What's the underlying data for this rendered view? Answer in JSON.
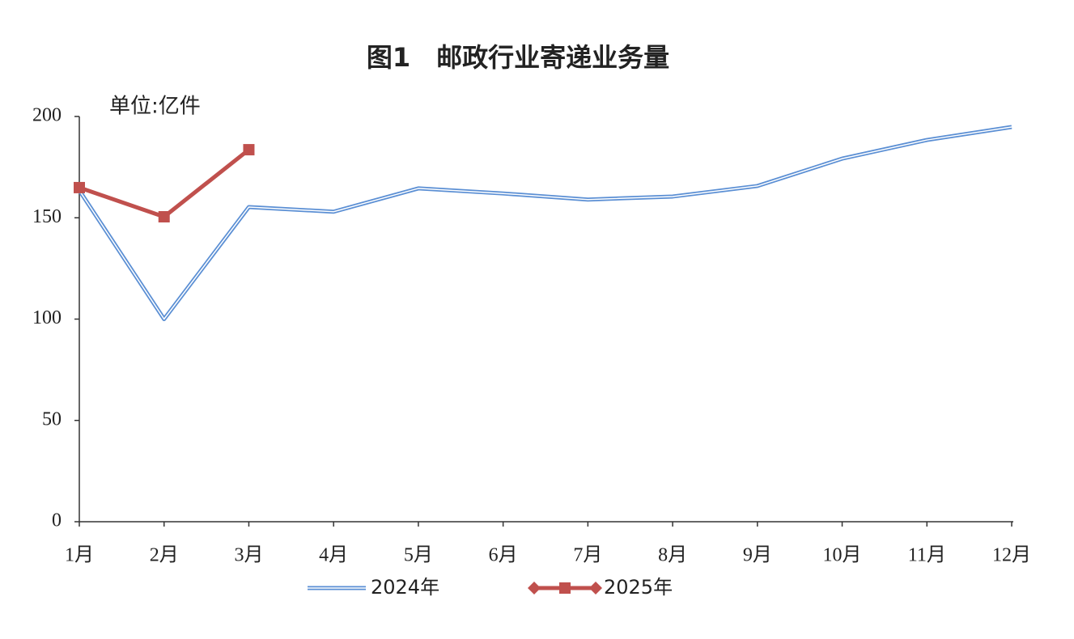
{
  "chart_data": {
    "type": "line",
    "title": "图1　邮政行业寄递业务量",
    "unit_label": "单位:亿件",
    "categories": [
      "1月",
      "2月",
      "3月",
      "4月",
      "5月",
      "6月",
      "7月",
      "8月",
      "9月",
      "10月",
      "11月",
      "12月"
    ],
    "series": [
      {
        "name": "2024年",
        "color": "#5b8fd4",
        "values": [
          163.5,
          100,
          155.3,
          153,
          164.5,
          162,
          159,
          160.5,
          165.7,
          179.2,
          188.4,
          194.8
        ]
      },
      {
        "name": "2025年",
        "color": "#c0504d",
        "values": [
          164.9,
          150.5,
          183.6,
          null,
          null,
          null,
          null,
          null,
          null,
          null,
          null,
          null
        ]
      }
    ],
    "ylim": [
      0,
      200
    ],
    "yticks": [
      0,
      50,
      100,
      150,
      200
    ],
    "grid": false,
    "legend": "bottom"
  }
}
